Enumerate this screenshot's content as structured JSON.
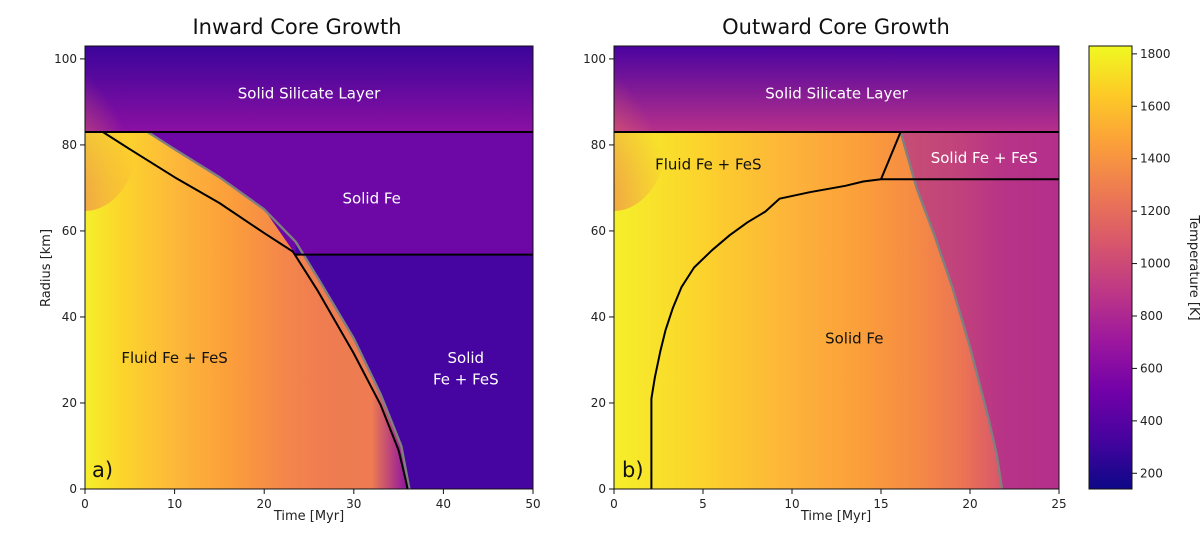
{
  "chart_data": [
    {
      "type": "heatmap",
      "panel_label": "a)",
      "title": "Inward Core Growth",
      "xlabel": "Time [Myr]",
      "ylabel": "Radius [km]",
      "xlim": [
        0,
        50
      ],
      "ylim": [
        0,
        103
      ],
      "xticks": [
        0,
        10,
        20,
        30,
        40,
        50
      ],
      "yticks": [
        0,
        20,
        40,
        60,
        80,
        100
      ],
      "boundaries": [
        {
          "name": "core-mantle-boundary",
          "color": "#000000",
          "points": [
            [
              0,
              83
            ],
            [
              50,
              83
            ]
          ]
        },
        {
          "name": "solid-fe-lower-boundary",
          "color": "#000000",
          "points": [
            [
              23.5,
              54.5
            ],
            [
              50,
              54.5
            ]
          ]
        },
        {
          "name": "solidification-front",
          "color": "#000000",
          "points": [
            [
              2,
              83
            ],
            [
              5,
              79
            ],
            [
              10,
              72.5
            ],
            [
              15,
              66.5
            ],
            [
              20,
              59.5
            ],
            [
              23.2,
              55.2
            ],
            [
              26,
              46
            ],
            [
              30,
              31.5
            ],
            [
              33,
              19.5
            ],
            [
              35,
              9
            ],
            [
              35.8,
              2
            ],
            [
              36,
              0
            ]
          ]
        },
        {
          "name": "isotherm",
          "color": "#808080",
          "points": [
            [
              7,
              83
            ],
            [
              10,
              79
            ],
            [
              15,
              72.5
            ],
            [
              20,
              65
            ],
            [
              23.5,
              57.5
            ],
            [
              26,
              49
            ],
            [
              30,
              35
            ],
            [
              33,
              22
            ],
            [
              35.3,
              10
            ],
            [
              36.2,
              0
            ]
          ]
        }
      ],
      "regions": [
        {
          "label": "Solid Silicate Layer",
          "x": 25,
          "y": 92
        },
        {
          "label": "Solid Fe",
          "x": 32,
          "y": 67.5
        },
        {
          "label": "Fluid Fe + FeS",
          "x": 10,
          "y": 30.5
        },
        {
          "label": "Solid",
          "x": 42.5,
          "y": 30.5
        },
        {
          "label": "Fe + FeS",
          "x": 42.5,
          "y": 25.5
        }
      ]
    },
    {
      "type": "heatmap",
      "panel_label": "b)",
      "title": "Outward Core Growth",
      "xlabel": "Time [Myr]",
      "ylabel": "",
      "xlim": [
        0,
        25
      ],
      "ylim": [
        0,
        103
      ],
      "xticks": [
        0,
        5,
        10,
        15,
        20,
        25
      ],
      "yticks": [
        0,
        20,
        40,
        60,
        80,
        100
      ],
      "boundaries": [
        {
          "name": "core-mantle-boundary",
          "color": "#000000",
          "points": [
            [
              0,
              83
            ],
            [
              25,
              83
            ]
          ]
        },
        {
          "name": "solid-fefes-lower-boundary",
          "color": "#000000",
          "points": [
            [
              15,
              72
            ],
            [
              25,
              72
            ]
          ]
        },
        {
          "name": "fe-fes-diagonal",
          "color": "#000000",
          "points": [
            [
              15,
              72
            ],
            [
              16.1,
              83
            ]
          ]
        },
        {
          "name": "solidification-front",
          "color": "#000000",
          "points": [
            [
              2.1,
              0
            ],
            [
              2.1,
              21
            ],
            [
              2.3,
              26
            ],
            [
              2.6,
              32
            ],
            [
              2.9,
              37
            ],
            [
              3.3,
              42
            ],
            [
              3.8,
              47
            ],
            [
              4.5,
              51.5
            ],
            [
              5.5,
              55.5
            ],
            [
              6.5,
              59
            ],
            [
              7.5,
              62
            ],
            [
              8.5,
              64.5
            ],
            [
              9.3,
              67.5
            ],
            [
              11,
              69
            ],
            [
              13,
              70.5
            ],
            [
              14,
              71.5
            ],
            [
              15,
              72
            ]
          ]
        },
        {
          "name": "isotherm",
          "color": "#808080",
          "points": [
            [
              16.1,
              83
            ],
            [
              17,
              70
            ],
            [
              18,
              59
            ],
            [
              19,
              47
            ],
            [
              20,
              33
            ],
            [
              21,
              17
            ],
            [
              21.5,
              8
            ],
            [
              21.8,
              0
            ]
          ]
        }
      ],
      "regions": [
        {
          "label": "Solid Silicate Layer",
          "x": 12.5,
          "y": 92
        },
        {
          "label": "Fluid Fe + FeS",
          "x": 5.3,
          "y": 75.5
        },
        {
          "label": "Solid Fe + FeS",
          "x": 20.8,
          "y": 77
        },
        {
          "label": "Solid Fe",
          "x": 13.5,
          "y": 35
        }
      ]
    }
  ],
  "colorbar": {
    "label": "Temperature [K]",
    "min": 140,
    "max": 1830,
    "ticks": [
      200,
      400,
      600,
      800,
      1000,
      1200,
      1400,
      1600,
      1800
    ],
    "colors": [
      "#0d0887",
      "#46039f",
      "#7201a8",
      "#9c179e",
      "#bd3786",
      "#d8576b",
      "#ed7953",
      "#fb9f3a",
      "#fdca26",
      "#f0f921"
    ]
  }
}
